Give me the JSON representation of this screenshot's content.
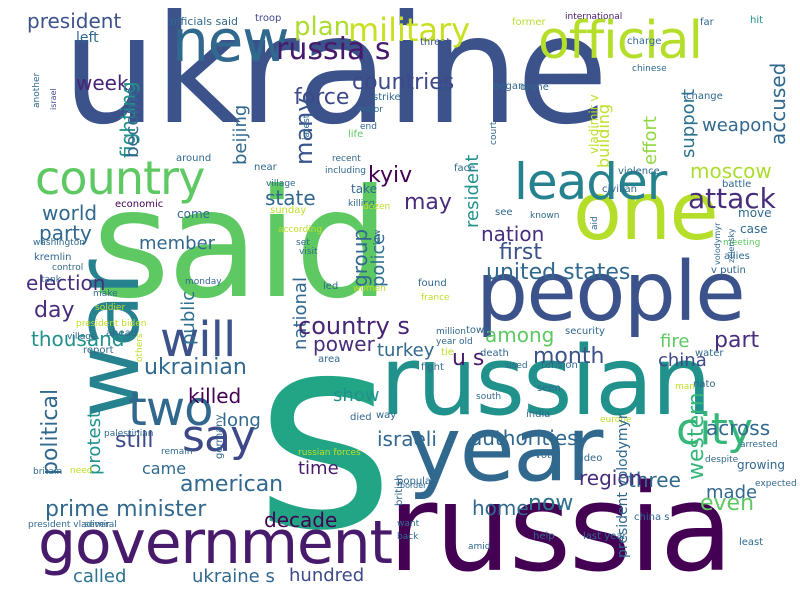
{
  "words": [
    {
      "text": "ukraine",
      "color": "#3b528b",
      "orientation": "horizontal"
    },
    {
      "text": "s",
      "color": "#21a585",
      "orientation": "horizontal"
    },
    {
      "text": "said",
      "color": "#5ec962",
      "orientation": "horizontal"
    },
    {
      "text": "russia",
      "color": "#440154",
      "orientation": "horizontal"
    },
    {
      "text": "russian",
      "color": "#21918c",
      "orientation": "horizontal"
    },
    {
      "text": "year",
      "color": "#31688e",
      "orientation": "horizontal"
    },
    {
      "text": "people",
      "color": "#3b528b",
      "orientation": "horizontal"
    },
    {
      "text": "one",
      "color": "#b5de2b",
      "orientation": "horizontal"
    },
    {
      "text": "government",
      "color": "#481a6c",
      "orientation": "horizontal"
    },
    {
      "text": "war",
      "color": "#26828e",
      "orientation": "vertical"
    },
    {
      "text": "new",
      "color": "#31688e",
      "orientation": "horizontal"
    },
    {
      "text": "official",
      "color": "#b5de2b",
      "orientation": "horizontal"
    },
    {
      "text": "country",
      "color": "#5ec962",
      "orientation": "horizontal"
    },
    {
      "text": "leader",
      "color": "#26828e",
      "orientation": "horizontal"
    },
    {
      "text": "will",
      "color": "#3b528b",
      "orientation": "horizontal"
    },
    {
      "text": "two",
      "color": "#31688e",
      "orientation": "horizontal"
    },
    {
      "text": "say",
      "color": "#3e4989",
      "orientation": "horizontal"
    },
    {
      "text": "city",
      "color": "#35b779",
      "orientation": "horizontal"
    },
    {
      "text": "attack",
      "color": "#472d7b",
      "orientation": "horizontal"
    },
    {
      "text": "military",
      "color": "#c8e020",
      "orientation": "horizontal"
    },
    {
      "text": "russia s",
      "color": "#481a6c",
      "orientation": "horizontal"
    },
    {
      "text": "president",
      "color": "#3b528b",
      "orientation": "horizontal"
    },
    {
      "text": "plan",
      "color": "#addc30",
      "orientation": "horizontal"
    },
    {
      "text": "countries",
      "color": "#3e4989",
      "orientation": "horizontal"
    },
    {
      "text": "week",
      "color": "#482475",
      "orientation": "horizontal"
    },
    {
      "text": "left",
      "color": "#31688e",
      "orientation": "horizontal"
    },
    {
      "text": "force",
      "color": "#3e4989",
      "orientation": "horizontal"
    },
    {
      "text": "accused",
      "color": "#31688e",
      "orientation": "vertical"
    },
    {
      "text": "weapon",
      "color": "#31688e",
      "orientation": "horizontal"
    },
    {
      "text": "support",
      "color": "#2c728e",
      "orientation": "vertical"
    },
    {
      "text": "effort",
      "color": "#90d743",
      "orientation": "vertical"
    },
    {
      "text": "building",
      "color": "#bddf26",
      "orientation": "vertical"
    },
    {
      "text": "moscow",
      "color": "#addc30",
      "orientation": "horizontal"
    },
    {
      "text": "fighting",
      "color": "#21918c",
      "orientation": "vertical"
    },
    {
      "text": "become",
      "color": "#31688e",
      "orientation": "vertical"
    },
    {
      "text": "beijing",
      "color": "#31688e",
      "orientation": "vertical"
    },
    {
      "text": "many",
      "color": "#39568c",
      "orientation": "vertical"
    },
    {
      "text": "kyiv",
      "color": "#440154",
      "orientation": "horizontal"
    },
    {
      "text": "resident",
      "color": "#21918c",
      "orientation": "vertical"
    },
    {
      "text": "may",
      "color": "#472d7b",
      "orientation": "horizontal"
    },
    {
      "text": "state",
      "color": "#31688e",
      "orientation": "horizontal"
    },
    {
      "text": "world",
      "color": "#31688e",
      "orientation": "horizontal"
    },
    {
      "text": "party",
      "color": "#31688e",
      "orientation": "horizontal"
    },
    {
      "text": "nation",
      "color": "#472d7b",
      "orientation": "horizontal"
    },
    {
      "text": "group",
      "color": "#31688e",
      "orientation": "vertical"
    },
    {
      "text": "police",
      "color": "#2c728e",
      "orientation": "vertical"
    },
    {
      "text": "first",
      "color": "#3b528b",
      "orientation": "horizontal"
    },
    {
      "text": "member",
      "color": "#31688e",
      "orientation": "horizontal"
    },
    {
      "text": "election",
      "color": "#472d7b",
      "orientation": "horizontal"
    },
    {
      "text": "united states",
      "color": "#31688e",
      "orientation": "horizontal"
    },
    {
      "text": "public",
      "color": "#2c728e",
      "orientation": "vertical"
    },
    {
      "text": "national",
      "color": "#31688e",
      "orientation": "vertical"
    },
    {
      "text": "day",
      "color": "#472d7b",
      "orientation": "horizontal"
    },
    {
      "text": "country s",
      "color": "#482475",
      "orientation": "horizontal"
    },
    {
      "text": "part",
      "color": "#472d7b",
      "orientation": "horizontal"
    },
    {
      "text": "among",
      "color": "#5ec962",
      "orientation": "horizontal"
    },
    {
      "text": "power",
      "color": "#472d7b",
      "orientation": "horizontal"
    },
    {
      "text": "month",
      "color": "#3b528b",
      "orientation": "horizontal"
    },
    {
      "text": "thousand",
      "color": "#21918c",
      "orientation": "horizontal"
    },
    {
      "text": "u s",
      "color": "#481a6c",
      "orientation": "horizontal"
    },
    {
      "text": "fire",
      "color": "#5ec962",
      "orientation": "horizontal"
    },
    {
      "text": "china",
      "color": "#3e4989",
      "orientation": "horizontal"
    },
    {
      "text": "ukrainian",
      "color": "#31688e",
      "orientation": "horizontal"
    },
    {
      "text": "turkey",
      "color": "#31688e",
      "orientation": "horizontal"
    },
    {
      "text": "political",
      "color": "#31688e",
      "orientation": "vertical"
    },
    {
      "text": "killed",
      "color": "#440154",
      "orientation": "horizontal"
    },
    {
      "text": "show",
      "color": "#21918c",
      "orientation": "horizontal"
    },
    {
      "text": "western",
      "color": "#35b779",
      "orientation": "vertical"
    },
    {
      "text": "long",
      "color": "#31688e",
      "orientation": "horizontal"
    },
    {
      "text": "protest",
      "color": "#21918c",
      "orientation": "vertical"
    },
    {
      "text": "across",
      "color": "#31688e",
      "orientation": "horizontal"
    },
    {
      "text": "still",
      "color": "#3e4989",
      "orientation": "horizontal"
    },
    {
      "text": "israeli",
      "color": "#31688e",
      "orientation": "horizontal"
    },
    {
      "text": "authorities",
      "color": "#31688e",
      "orientation": "horizontal"
    },
    {
      "text": "came",
      "color": "#31688e",
      "orientation": "horizontal"
    },
    {
      "text": "time",
      "color": "#481a6c",
      "orientation": "horizontal"
    },
    {
      "text": "american",
      "color": "#31688e",
      "orientation": "horizontal"
    },
    {
      "text": "three",
      "color": "#31688e",
      "orientation": "horizontal"
    },
    {
      "text": "made",
      "color": "#31688e",
      "orientation": "horizontal"
    },
    {
      "text": "region",
      "color": "#472d7b",
      "orientation": "horizontal"
    },
    {
      "text": "now",
      "color": "#2c728e",
      "orientation": "horizontal"
    },
    {
      "text": "even",
      "color": "#5ec962",
      "orientation": "horizontal"
    },
    {
      "text": "home",
      "color": "#31688e",
      "orientation": "horizontal"
    },
    {
      "text": "prime minister",
      "color": "#31688e",
      "orientation": "horizontal"
    },
    {
      "text": "decade",
      "color": "#440154",
      "orientation": "horizontal"
    },
    {
      "text": "called",
      "color": "#2c728e",
      "orientation": "horizontal"
    },
    {
      "text": "ukraine s",
      "color": "#31688e",
      "orientation": "horizontal"
    },
    {
      "text": "hundred",
      "color": "#3e4989",
      "orientation": "horizontal"
    },
    {
      "text": "officials said",
      "color": "#31688e",
      "orientation": "horizontal"
    },
    {
      "text": "troop",
      "color": "#3e4989",
      "orientation": "horizontal"
    },
    {
      "text": "threat",
      "color": "#3b528b",
      "orientation": "horizontal"
    },
    {
      "text": "former",
      "color": "#b5de2b",
      "orientation": "horizontal"
    },
    {
      "text": "international",
      "color": "#481a6c",
      "orientation": "horizontal"
    },
    {
      "text": "far",
      "color": "#31688e",
      "orientation": "horizontal"
    },
    {
      "text": "hit",
      "color": "#21918c",
      "orientation": "horizontal"
    },
    {
      "text": "charge",
      "color": "#31688e",
      "orientation": "horizontal"
    },
    {
      "text": "chinese",
      "color": "#31688e",
      "orientation": "horizontal"
    },
    {
      "text": "another",
      "color": "#31688e",
      "orientation": "vertical"
    },
    {
      "text": "israel",
      "color": "#3e4989",
      "orientation": "vertical"
    },
    {
      "text": "began",
      "color": "#31688e",
      "orientation": "horizontal"
    },
    {
      "text": "drone",
      "color": "#31688e",
      "orientation": "horizontal"
    },
    {
      "text": "strike",
      "color": "#31688e",
      "orientation": "horizontal"
    },
    {
      "text": "major",
      "color": "#31688e",
      "orientation": "horizontal"
    },
    {
      "text": "end",
      "color": "#31688e",
      "orientation": "horizontal"
    },
    {
      "text": "life",
      "color": "#5ec962",
      "orientation": "horizontal"
    },
    {
      "text": "latest",
      "color": "#31688e",
      "orientation": "vertical"
    },
    {
      "text": "court",
      "color": "#31688e",
      "orientation": "vertical"
    },
    {
      "text": "vladimir v",
      "color": "#bddf26",
      "orientation": "vertical"
    },
    {
      "text": "change",
      "color": "#31688e",
      "orientation": "horizontal"
    },
    {
      "text": "around",
      "color": "#31688e",
      "orientation": "horizontal"
    },
    {
      "text": "near",
      "color": "#31688e",
      "orientation": "horizontal"
    },
    {
      "text": "village",
      "color": "#31688e",
      "orientation": "horizontal"
    },
    {
      "text": "recent",
      "color": "#31688e",
      "orientation": "horizontal"
    },
    {
      "text": "including",
      "color": "#31688e",
      "orientation": "horizontal"
    },
    {
      "text": "face",
      "color": "#31688e",
      "orientation": "horizontal"
    },
    {
      "text": "violence",
      "color": "#31688e",
      "orientation": "horizontal"
    },
    {
      "text": "civilian",
      "color": "#31688e",
      "orientation": "horizontal"
    },
    {
      "text": "battle",
      "color": "#31688e",
      "orientation": "horizontal"
    },
    {
      "text": "economic",
      "color": "#440154",
      "orientation": "horizontal"
    },
    {
      "text": "sunday",
      "color": "#bddf26",
      "orientation": "horizontal"
    },
    {
      "text": "take",
      "color": "#31688e",
      "orientation": "horizontal"
    },
    {
      "text": "killing",
      "color": "#31688e",
      "orientation": "horizontal"
    },
    {
      "text": "dozen",
      "color": "#bddf26",
      "orientation": "horizontal"
    },
    {
      "text": "come",
      "color": "#31688e",
      "orientation": "horizontal"
    },
    {
      "text": "see",
      "color": "#31688e",
      "orientation": "horizontal"
    },
    {
      "text": "known",
      "color": "#31688e",
      "orientation": "horizontal"
    },
    {
      "text": "move",
      "color": "#31688e",
      "orientation": "horizontal"
    },
    {
      "text": "case",
      "color": "#31688e",
      "orientation": "horizontal"
    },
    {
      "text": "washington",
      "color": "#31688e",
      "orientation": "horizontal"
    },
    {
      "text": "kremlin",
      "color": "#31688e",
      "orientation": "horizontal"
    },
    {
      "text": "according",
      "color": "#bddf26",
      "orientation": "horizontal"
    },
    {
      "text": "set",
      "color": "#31688e",
      "orientation": "horizontal"
    },
    {
      "text": "visit",
      "color": "#31688e",
      "orientation": "horizontal"
    },
    {
      "text": "law",
      "color": "#31688e",
      "orientation": "vertical"
    },
    {
      "text": "aid",
      "color": "#31688e",
      "orientation": "vertical"
    },
    {
      "text": "meeting",
      "color": "#5ec962",
      "orientation": "horizontal"
    },
    {
      "text": "allies",
      "color": "#31688e",
      "orientation": "horizontal"
    },
    {
      "text": "control",
      "color": "#31688e",
      "orientation": "horizontal"
    },
    {
      "text": "tank",
      "color": "#31688e",
      "orientation": "horizontal"
    },
    {
      "text": "monday",
      "color": "#31688e",
      "orientation": "horizontal"
    },
    {
      "text": "led",
      "color": "#31688e",
      "orientation": "horizontal"
    },
    {
      "text": "women",
      "color": "#bddf26",
      "orientation": "horizontal"
    },
    {
      "text": "found",
      "color": "#31688e",
      "orientation": "horizontal"
    },
    {
      "text": "france",
      "color": "#bddf26",
      "orientation": "horizontal"
    },
    {
      "text": "v putin",
      "color": "#31688e",
      "orientation": "horizontal"
    },
    {
      "text": "zelensky",
      "color": "#31688e",
      "orientation": "vertical"
    },
    {
      "text": "volodymyr",
      "color": "#31688e",
      "orientation": "vertical"
    },
    {
      "text": "make",
      "color": "#31688e",
      "orientation": "horizontal"
    },
    {
      "text": "soldier",
      "color": "#bddf26",
      "orientation": "horizontal"
    },
    {
      "text": "president biden",
      "color": "#bddf26",
      "orientation": "horizontal"
    },
    {
      "text": "village",
      "color": "#31688e",
      "orientation": "horizontal"
    },
    {
      "text": "ahead",
      "color": "#31688e",
      "orientation": "horizontal"
    },
    {
      "text": "report",
      "color": "#31688e",
      "orientation": "horizontal"
    },
    {
      "text": "others",
      "color": "#bddf26",
      "orientation": "vertical"
    },
    {
      "text": "area",
      "color": "#31688e",
      "orientation": "horizontal"
    },
    {
      "text": "town",
      "color": "#31688e",
      "orientation": "horizontal"
    },
    {
      "text": "year old",
      "color": "#31688e",
      "orientation": "horizontal"
    },
    {
      "text": "million",
      "color": "#31688e",
      "orientation": "horizontal"
    },
    {
      "text": "tie",
      "color": "#bddf26",
      "orientation": "horizontal"
    },
    {
      "text": "death",
      "color": "#31688e",
      "orientation": "horizontal"
    },
    {
      "text": "security",
      "color": "#31688e",
      "orientation": "horizontal"
    },
    {
      "text": "water",
      "color": "#31688e",
      "orientation": "horizontal"
    },
    {
      "text": "fight",
      "color": "#31688e",
      "orientation": "horizontal"
    },
    {
      "text": "used",
      "color": "#31688e",
      "orientation": "horizontal"
    },
    {
      "text": "tension",
      "color": "#31688e",
      "orientation": "horizontal"
    },
    {
      "text": "nato",
      "color": "#31688e",
      "orientation": "horizontal"
    },
    {
      "text": "died",
      "color": "#31688e",
      "orientation": "horizontal"
    },
    {
      "text": "way",
      "color": "#31688e",
      "orientation": "horizontal"
    },
    {
      "text": "seen",
      "color": "#31688e",
      "orientation": "horizontal"
    },
    {
      "text": "man",
      "color": "#bddf26",
      "orientation": "horizontal"
    },
    {
      "text": "south",
      "color": "#31688e",
      "orientation": "horizontal"
    },
    {
      "text": "europe",
      "color": "#bddf26",
      "orientation": "horizontal"
    },
    {
      "text": "india",
      "color": "#31688e",
      "orientation": "horizontal"
    },
    {
      "text": "palestinian",
      "color": "#31688e",
      "orientation": "horizontal"
    },
    {
      "text": "russian forces",
      "color": "#bddf26",
      "orientation": "horizontal"
    },
    {
      "text": "remain",
      "color": "#31688e",
      "orientation": "horizontal"
    },
    {
      "text": "vote",
      "color": "#31688e",
      "orientation": "horizontal"
    },
    {
      "text": "video",
      "color": "#31688e",
      "orientation": "horizontal"
    },
    {
      "text": "growing",
      "color": "#31688e",
      "orientation": "horizontal"
    },
    {
      "text": "despite",
      "color": "#31688e",
      "orientation": "horizontal"
    },
    {
      "text": "arrested",
      "color": "#31688e",
      "orientation": "horizontal"
    },
    {
      "text": "germany",
      "color": "#31688e",
      "orientation": "vertical"
    },
    {
      "text": "border",
      "color": "#31688e",
      "orientation": "horizontal"
    },
    {
      "text": "britain",
      "color": "#31688e",
      "orientation": "horizontal"
    },
    {
      "text": "need",
      "color": "#bddf26",
      "orientation": "horizontal"
    },
    {
      "text": "expected",
      "color": "#31688e",
      "orientation": "horizontal"
    },
    {
      "text": "president vladimir",
      "color": "#31688e",
      "orientation": "horizontal"
    },
    {
      "text": "several",
      "color": "#31688e",
      "orientation": "horizontal"
    },
    {
      "text": "popular",
      "color": "#31688e",
      "orientation": "horizontal"
    },
    {
      "text": "british",
      "color": "#31688e",
      "orientation": "vertical"
    },
    {
      "text": "amid",
      "color": "#31688e",
      "orientation": "horizontal"
    },
    {
      "text": "help",
      "color": "#31688e",
      "orientation": "horizontal"
    },
    {
      "text": "last year",
      "color": "#31688e",
      "orientation": "horizontal"
    },
    {
      "text": "china s",
      "color": "#31688e",
      "orientation": "horizontal"
    },
    {
      "text": "least",
      "color": "#31688e",
      "orientation": "horizontal"
    },
    {
      "text": "want",
      "color": "#31688e",
      "orientation": "horizontal"
    },
    {
      "text": "back",
      "color": "#31688e",
      "orientation": "horizontal"
    },
    {
      "text": "president volodymyr",
      "color": "#31688e",
      "orientation": "vertical"
    }
  ]
}
